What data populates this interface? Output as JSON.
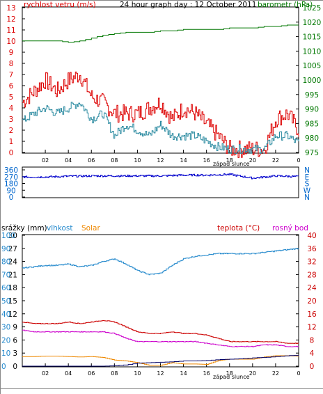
{
  "colors": {
    "wind": "#dd0000",
    "gust": "#2a8aa0",
    "pressure": "#007700",
    "direction": "#0000cc",
    "temp": "#cc0000",
    "dew": "#cc00cc",
    "humidity": "#2288cc",
    "solar": "#ee8800",
    "rain": "#000066",
    "blue_axis": "#0066cc"
  },
  "top": {
    "title": "24 hour graph day : 12 October 2011",
    "wind_label": "rychlost vetru (m/s)",
    "baro_label": "barometr (hPa)",
    "sunset_label": "západ slunce",
    "left_ticks": [
      "0",
      "1",
      "2",
      "3",
      "4",
      "5",
      "6",
      "7",
      "8",
      "9",
      "10",
      "11",
      "12",
      "13"
    ],
    "right_ticks": [
      "975",
      "980",
      "985",
      "990",
      "995",
      "1000",
      "1005",
      "1010",
      "1015",
      "1020",
      "1025"
    ]
  },
  "mid": {
    "left_ticks": [
      "0",
      "90",
      "180",
      "270",
      "360"
    ],
    "right_ticks": [
      "N",
      "E",
      "S",
      "W",
      "N"
    ]
  },
  "bottom": {
    "rain_label": "srážky (mm)",
    "hum_label": "vlhkost",
    "solar_label": "Solar",
    "temp_label": "teplota (°C)",
    "dew_label": "rosný bod",
    "sunset_label": "západ slunce",
    "rain_ticks": [
      "0",
      "3",
      "6",
      "9",
      "12",
      "15",
      "18",
      "21",
      "24",
      "27",
      "30"
    ],
    "hum_ticks": [
      "0",
      "10",
      "20",
      "30",
      "40",
      "50",
      "60",
      "70",
      "80",
      "90",
      "100"
    ],
    "temp_ticks": [
      "0",
      "4",
      "8",
      "12",
      "16",
      "20",
      "24",
      "28",
      "32",
      "36",
      "40"
    ]
  },
  "x_ticks": [
    "02",
    "04",
    "06",
    "08",
    "10",
    "12",
    "14",
    "16",
    "18",
    "20",
    "22",
    "0"
  ],
  "chart_data": [
    {
      "type": "line",
      "title": "24 hour graph day : 12 October 2011",
      "xlabel": "",
      "ylabel": "rychlost vetru (m/s)",
      "ylim": [
        0,
        13
      ],
      "y2label": "barometr (hPa)",
      "y2lim": [
        975,
        1025
      ],
      "x": [
        0,
        1,
        2,
        3,
        4,
        5,
        6,
        7,
        8,
        9,
        10,
        11,
        12,
        13,
        14,
        15,
        16,
        17,
        18,
        19,
        20,
        21,
        22,
        23,
        24
      ],
      "series": [
        {
          "values": [
            4.5,
            5.5,
            6.5,
            5.5,
            6.5,
            7.0,
            5.0,
            4.5,
            3.5,
            3.5,
            3.5,
            4.0,
            4.5,
            3.0,
            4.0,
            3.5,
            2.5,
            1.5,
            0.3,
            0.3,
            0.3,
            0.3,
            3.0,
            3.5,
            2.0
          ]
        },
        {
          "values": [
            2.8,
            3.5,
            4.0,
            3.5,
            4.0,
            4.5,
            3.0,
            3.5,
            1.5,
            2.5,
            2.0,
            1.5,
            2.5,
            1.5,
            1.5,
            1.5,
            1.0,
            0.5,
            0.3,
            0.3,
            0.3,
            0.3,
            1.5,
            1.5,
            0.8
          ]
        },
        {
          "values": [
            1013.5,
            1013.5,
            1013.5,
            1013.5,
            1013.0,
            1013.5,
            1014.5,
            1015.5,
            1016.0,
            1016.5,
            1016.5,
            1016.5,
            1017.0,
            1017.0,
            1017.5,
            1017.5,
            1017.5,
            1017.5,
            1018.0,
            1018.0,
            1018.0,
            1018.5,
            1018.5,
            1019.0,
            1019.0
          ]
        }
      ]
    },
    {
      "type": "line",
      "title": "",
      "xlabel": "",
      "ylabel": "",
      "ylim": [
        0,
        360
      ],
      "x": [
        0,
        2,
        4,
        6,
        8,
        10,
        12,
        14,
        16,
        18,
        20,
        22,
        24
      ],
      "series": [
        {
          "values": [
            265,
            265,
            275,
            280,
            280,
            280,
            280,
            290,
            290,
            300,
            250,
            280,
            270
          ]
        }
      ]
    },
    {
      "type": "line",
      "title": "",
      "xlabel": "",
      "ylabel": "srážky (mm)",
      "ylim": [
        0,
        30
      ],
      "y2lim": [
        0,
        40
      ],
      "x": [
        0,
        1,
        2,
        3,
        4,
        5,
        6,
        7,
        8,
        9,
        10,
        11,
        12,
        13,
        14,
        15,
        16,
        17,
        18,
        19,
        20,
        21,
        22,
        23,
        24
      ],
      "series": [
        {
          "values": [
            2.2,
            2.2,
            2.3,
            2.3,
            2.2,
            2.1,
            2.2,
            2.0,
            1.4,
            1.2,
            0.8,
            0.2,
            0.2,
            0.8,
            0.5,
            0.5,
            0.4,
            1.3,
            1.6,
            1.6,
            1.6,
            2.1,
            2.4,
            2.4,
            2.3
          ]
        },
        {
          "values": [
            0,
            0,
            0,
            0,
            0,
            0,
            0,
            0,
            0.1,
            0.3,
            0.7,
            0.8,
            0.9,
            1.0,
            1.2,
            1.2,
            1.3,
            1.5,
            1.6,
            1.7,
            1.9,
            2.0,
            2.2,
            2.4,
            2.5
          ]
        },
        {
          "values": [
            75,
            76,
            77,
            77,
            78,
            76,
            77,
            80,
            82,
            78,
            73,
            70,
            71,
            77,
            82,
            84,
            85,
            86,
            86,
            86,
            86,
            87,
            88,
            89,
            90
          ]
        },
        {
          "values": [
            13.5,
            13.0,
            13.0,
            13.0,
            13.5,
            13.0,
            13.5,
            14.0,
            13.5,
            12.0,
            10.5,
            10.0,
            10.0,
            10.5,
            10.0,
            10.0,
            9.5,
            8.5,
            7.5,
            7.5,
            7.5,
            7.5,
            7.5,
            7.0,
            7.0
          ]
        },
        {
          "values": [
            11.0,
            10.5,
            10.5,
            10.5,
            10.5,
            10.5,
            10.5,
            10.5,
            10.0,
            8.5,
            7.5,
            7.5,
            7.5,
            7.5,
            7.5,
            7.5,
            7.0,
            6.5,
            6.0,
            6.0,
            6.0,
            6.5,
            6.5,
            6.0,
            6.0
          ]
        }
      ]
    }
  ]
}
